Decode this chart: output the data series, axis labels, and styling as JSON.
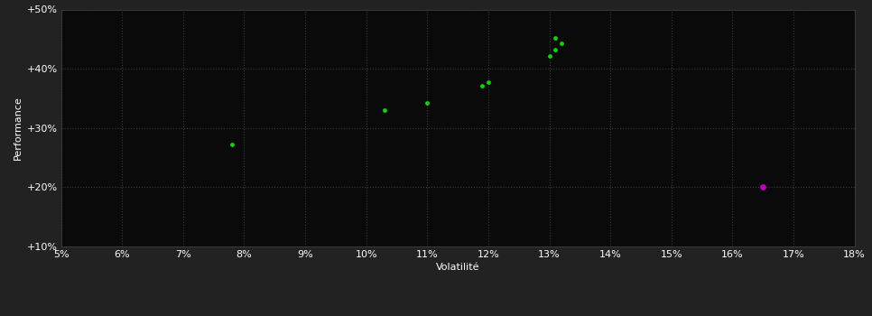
{
  "background_color": "#222222",
  "plot_bg_color": "#0a0a0a",
  "grid_color": "#3a3a3a",
  "grid_style": ":",
  "xlabel": "Volatilité",
  "ylabel": "Performance",
  "xlim": [
    0.05,
    0.18
  ],
  "ylim": [
    0.1,
    0.5
  ],
  "xticks": [
    0.05,
    0.06,
    0.07,
    0.08,
    0.09,
    0.1,
    0.11,
    0.12,
    0.13,
    0.14,
    0.15,
    0.16,
    0.17,
    0.18
  ],
  "yticks": [
    0.1,
    0.2,
    0.3,
    0.4,
    0.5
  ],
  "ytick_labels": [
    "+10%",
    "+20%",
    "+30%",
    "+40%",
    "+50%"
  ],
  "xtick_labels": [
    "5%",
    "6%",
    "7%",
    "8%",
    "9%",
    "10%",
    "11%",
    "12%",
    "13%",
    "14%",
    "15%",
    "16%",
    "17%",
    "18%"
  ],
  "green_points": [
    [
      0.078,
      0.272
    ],
    [
      0.103,
      0.33
    ],
    [
      0.11,
      0.342
    ],
    [
      0.119,
      0.372
    ],
    [
      0.12,
      0.378
    ],
    [
      0.13,
      0.422
    ],
    [
      0.131,
      0.432
    ],
    [
      0.132,
      0.443
    ],
    [
      0.131,
      0.452
    ]
  ],
  "magenta_points": [
    [
      0.165,
      0.2
    ]
  ],
  "green_color": "#00dd00",
  "magenta_color": "#bb00bb",
  "point_size": 12,
  "label_fontsize": 8,
  "tick_fontsize": 8,
  "tick_color": "#ffffff",
  "label_color": "#ffffff",
  "spine_color": "#444444"
}
